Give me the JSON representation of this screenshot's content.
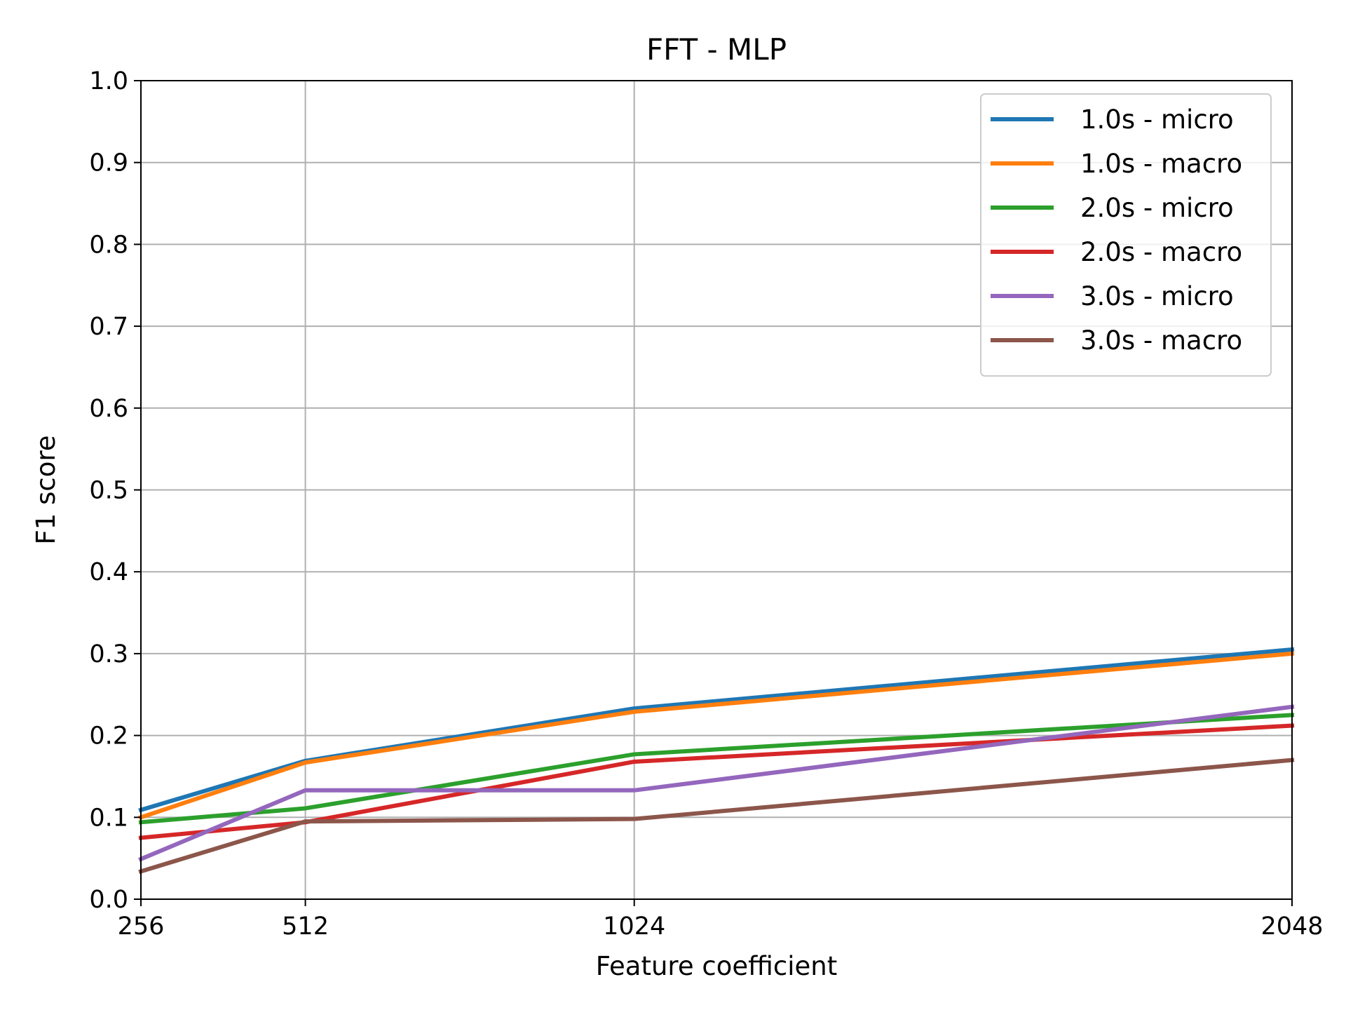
{
  "chart_data": {
    "type": "line",
    "title": "FFT - MLP",
    "xlabel": "Feature coefficient",
    "ylabel": "F1 score",
    "x": [
      256,
      512,
      1024,
      2048
    ],
    "xtick_labels": [
      "256",
      "512",
      "1024",
      "2048"
    ],
    "xlim": [
      256,
      2048
    ],
    "ylim": [
      0.0,
      1.0
    ],
    "yticks": [
      0.0,
      0.1,
      0.2,
      0.3,
      0.4,
      0.5,
      0.6,
      0.7,
      0.8,
      0.9,
      1.0
    ],
    "ytick_labels": [
      "0.0",
      "0.1",
      "0.2",
      "0.3",
      "0.4",
      "0.5",
      "0.6",
      "0.7",
      "0.8",
      "0.9",
      "1.0"
    ],
    "grid": true,
    "legend_position": "top-right",
    "series": [
      {
        "name": "1.0s - micro",
        "color": "#1f77b4",
        "values": [
          0.109,
          0.169,
          0.233,
          0.305
        ]
      },
      {
        "name": "1.0s - macro",
        "color": "#ff7f0e",
        "values": [
          0.1,
          0.167,
          0.229,
          0.3
        ]
      },
      {
        "name": "2.0s - micro",
        "color": "#2ca02c",
        "values": [
          0.094,
          0.111,
          0.177,
          0.225
        ]
      },
      {
        "name": "2.0s - macro",
        "color": "#d62728",
        "values": [
          0.075,
          0.094,
          0.168,
          0.212
        ]
      },
      {
        "name": "3.0s - micro",
        "color": "#9467bd",
        "values": [
          0.049,
          0.133,
          0.133,
          0.235
        ]
      },
      {
        "name": "3.0s - macro",
        "color": "#8c564b",
        "values": [
          0.034,
          0.095,
          0.098,
          0.17
        ]
      }
    ]
  }
}
